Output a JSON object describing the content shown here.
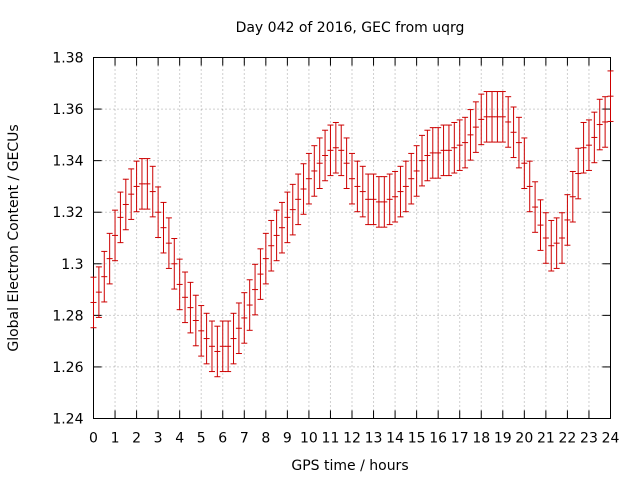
{
  "chart_data": {
    "type": "scatter",
    "title": "Day 042 of 2016, GEC from uqrg",
    "xlabel": "GPS time / hours",
    "ylabel": "Global Electron Content / GECUs",
    "xlim": [
      0,
      24
    ],
    "ylim": [
      1.24,
      1.38
    ],
    "xticks": [
      0,
      1,
      2,
      3,
      4,
      5,
      6,
      7,
      8,
      9,
      10,
      11,
      12,
      13,
      14,
      15,
      16,
      17,
      18,
      19,
      20,
      21,
      22,
      23,
      24
    ],
    "yticks": [
      1.24,
      1.26,
      1.28,
      1.3,
      1.32,
      1.34,
      1.36,
      1.38
    ],
    "ytick_labels": [
      "1.24",
      "1.26",
      "1.28",
      "1.3",
      "1.32",
      "1.34",
      "1.36",
      "1.38"
    ],
    "grid": true,
    "legend": "none",
    "error_bars": true,
    "color": "#cc0000",
    "series": [
      {
        "x": [
          0,
          0.25,
          0.5,
          0.75,
          1,
          1.25,
          1.5,
          1.75,
          2,
          2.25,
          2.5,
          2.75,
          3,
          3.25,
          3.5,
          3.75,
          4,
          4.25,
          4.5,
          4.75,
          5,
          5.25,
          5.5,
          5.75,
          6,
          6.25,
          6.5,
          6.75,
          7,
          7.25,
          7.5,
          7.75,
          8,
          8.25,
          8.5,
          8.75,
          9,
          9.25,
          9.5,
          9.75,
          10,
          10.25,
          10.5,
          10.75,
          11,
          11.25,
          11.5,
          11.75,
          12,
          12.25,
          12.5,
          12.75,
          13,
          13.25,
          13.5,
          13.75,
          14,
          14.25,
          14.5,
          14.75,
          15,
          15.25,
          15.5,
          15.75,
          16,
          16.25,
          16.5,
          16.75,
          17,
          17.25,
          17.5,
          17.75,
          18,
          18.25,
          18.5,
          18.75,
          19,
          19.25,
          19.5,
          19.75,
          20,
          20.25,
          20.5,
          20.75,
          21,
          21.25,
          21.5,
          21.75,
          22,
          22.25,
          22.5,
          22.75,
          23,
          23.25,
          23.5,
          23.75,
          24
        ],
        "y": [
          1.285,
          1.289,
          1.295,
          1.302,
          1.311,
          1.318,
          1.323,
          1.327,
          1.33,
          1.331,
          1.331,
          1.328,
          1.32,
          1.314,
          1.308,
          1.3,
          1.292,
          1.287,
          1.283,
          1.278,
          1.274,
          1.271,
          1.268,
          1.266,
          1.268,
          1.268,
          1.271,
          1.275,
          1.279,
          1.284,
          1.29,
          1.296,
          1.302,
          1.307,
          1.311,
          1.314,
          1.318,
          1.321,
          1.325,
          1.329,
          1.333,
          1.336,
          1.339,
          1.342,
          1.344,
          1.345,
          1.344,
          1.339,
          1.333,
          1.33,
          1.328,
          1.325,
          1.325,
          1.324,
          1.324,
          1.325,
          1.326,
          1.328,
          1.33,
          1.333,
          1.336,
          1.34,
          1.342,
          1.343,
          1.343,
          1.344,
          1.344,
          1.345,
          1.346,
          1.347,
          1.35,
          1.353,
          1.356,
          1.357,
          1.357,
          1.357,
          1.357,
          1.355,
          1.351,
          1.347,
          1.339,
          1.33,
          1.322,
          1.315,
          1.31,
          1.307,
          1.308,
          1.31,
          1.317,
          1.326,
          1.335,
          1.345,
          1.346,
          1.349,
          1.354,
          1.355,
          1.365
        ],
        "err": 0.0098
      }
    ]
  }
}
